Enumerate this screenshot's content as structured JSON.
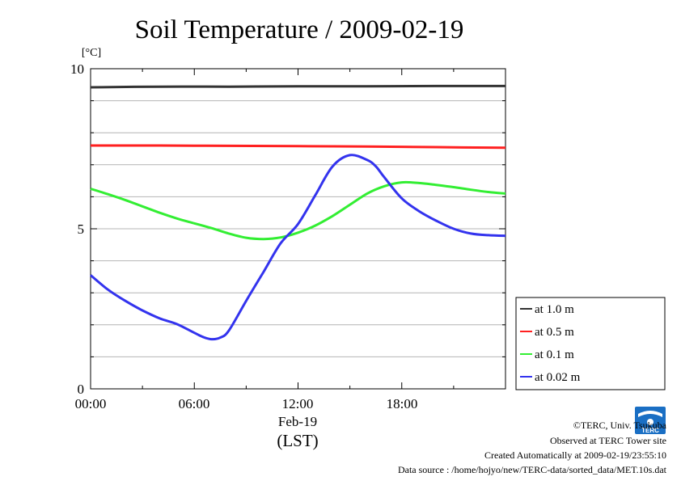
{
  "title": "Soil Temperature / 2009-02-19",
  "unit_label": "[°C]",
  "xaxis": {
    "ticks": [
      "00:00",
      "06:00",
      "12:00",
      "18:00"
    ],
    "date_label": "Feb-19",
    "tz_label": "(LST)"
  },
  "yaxis": {
    "ticks": [
      "0",
      "5",
      "10"
    ]
  },
  "legend": [
    {
      "label": "at 1.0 m",
      "color": "#333333"
    },
    {
      "label": "at 0.5 m",
      "color": "#ff2020"
    },
    {
      "label": "at 0.1 m",
      "color": "#33ee33"
    },
    {
      "label": "at 0.02 m",
      "color": "#3333ee"
    }
  ],
  "logo_text": "TERC",
  "credits": {
    "line1": "©TERC, Univ. Tsukuba",
    "line2": "Observed at TERC Tower site",
    "line3": "Created Automatically at 2009-02-19/23:55:10",
    "line4": "Data source : /home/hojyo/new/TERC-data/sorted_data/MET.10s.dat"
  },
  "chart_data": {
    "type": "line",
    "title": "Soil Temperature / 2009-02-19",
    "xlabel": "Feb-19 (LST)",
    "ylabel": "[°C]",
    "xlim": [
      0,
      24
    ],
    "ylim": [
      0,
      10
    ],
    "grid": true,
    "legend_position": "right",
    "series": [
      {
        "name": "at 1.0 m",
        "color": "#333333",
        "x": [
          0,
          4,
          8,
          12,
          16,
          20,
          24
        ],
        "y": [
          9.42,
          9.44,
          9.44,
          9.45,
          9.45,
          9.46,
          9.46
        ]
      },
      {
        "name": "at 0.5 m",
        "color": "#ff2020",
        "x": [
          0,
          4,
          8,
          12,
          16,
          20,
          24
        ],
        "y": [
          7.6,
          7.6,
          7.59,
          7.58,
          7.57,
          7.55,
          7.53
        ]
      },
      {
        "name": "at 0.1 m",
        "color": "#33ee33",
        "x": [
          0,
          1,
          2,
          3,
          4,
          5,
          6,
          7,
          8,
          9,
          10,
          11,
          12,
          13,
          14,
          15,
          16,
          17,
          18,
          19,
          20,
          21,
          22,
          23,
          24
        ],
        "y": [
          6.25,
          6.08,
          5.9,
          5.7,
          5.5,
          5.32,
          5.17,
          5.02,
          4.85,
          4.72,
          4.68,
          4.73,
          4.88,
          5.1,
          5.4,
          5.75,
          6.1,
          6.33,
          6.45,
          6.43,
          6.37,
          6.3,
          6.22,
          6.15,
          6.1
        ]
      },
      {
        "name": "at 0.02 m",
        "color": "#3333ee",
        "x": [
          0,
          1,
          2,
          3,
          4,
          5,
          6,
          6.5,
          7,
          7.5,
          8,
          9,
          10,
          11,
          12,
          13,
          14,
          15,
          16,
          16.5,
          17,
          18,
          19,
          20,
          21,
          22,
          23,
          24
        ],
        "y": [
          3.55,
          3.1,
          2.75,
          2.45,
          2.2,
          2.02,
          1.75,
          1.62,
          1.55,
          1.6,
          1.82,
          2.75,
          3.65,
          4.55,
          5.15,
          6.05,
          6.95,
          7.3,
          7.15,
          6.95,
          6.6,
          5.95,
          5.55,
          5.25,
          5.0,
          4.85,
          4.8,
          4.78
        ]
      }
    ]
  }
}
